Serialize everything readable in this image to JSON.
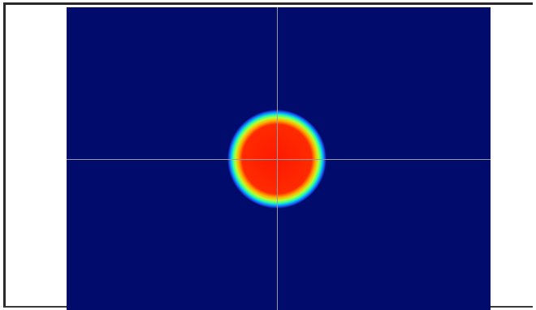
{
  "colors": {
    "frame_border": "#2a2a2a",
    "background_field": "#000b6c",
    "crosshair": "#9a9a9a",
    "gradient_stops": [
      "#ff1a00",
      "#ff3a00",
      "#ffd000",
      "#4cff6a",
      "#00c0ff",
      "#2050ff",
      "#000b6c"
    ]
  },
  "image_view": {
    "content": "heatmap-spot",
    "colormap": "jet"
  }
}
